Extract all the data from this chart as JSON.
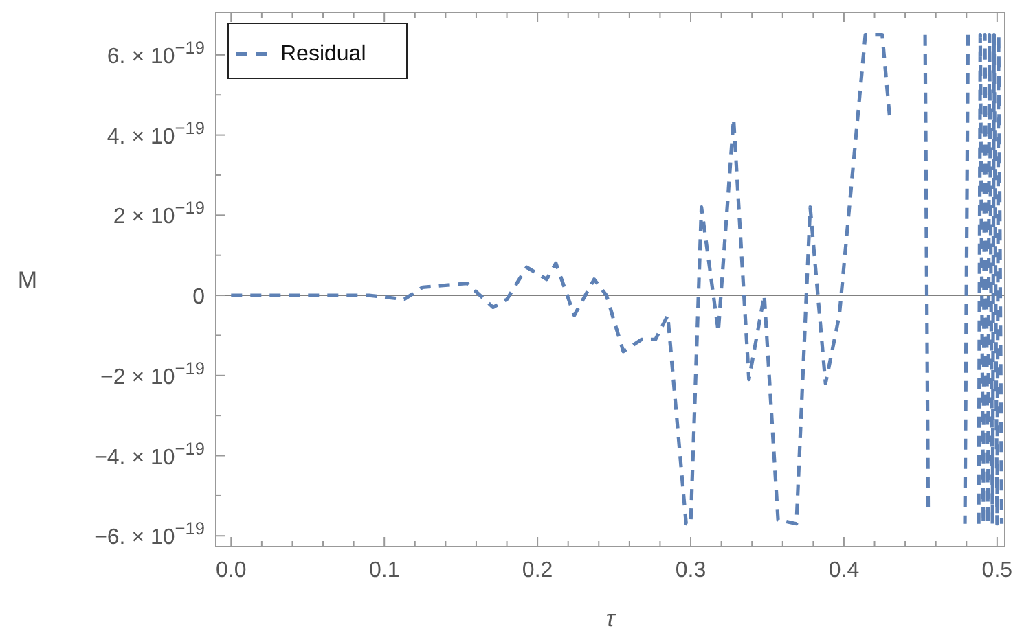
{
  "chart_data": {
    "type": "line",
    "xlabel": "τ",
    "ylabel": "M",
    "legend": "top left",
    "line_style": "dashed",
    "grid": false,
    "xlim": [
      -0.01,
      0.505
    ],
    "ylim": [
      -6.27e-19,
      7.06e-19
    ],
    "xticks": [
      {
        "value": 0,
        "label": "0.0"
      },
      {
        "value": 0.02,
        "label": null
      },
      {
        "value": 0.04,
        "label": null
      },
      {
        "value": 0.06,
        "label": null
      },
      {
        "value": 0.08,
        "label": null
      },
      {
        "value": 0.1,
        "label": "0.1"
      },
      {
        "value": 0.12,
        "label": null
      },
      {
        "value": 0.14,
        "label": null
      },
      {
        "value": 0.16,
        "label": null
      },
      {
        "value": 0.18,
        "label": null
      },
      {
        "value": 0.2,
        "label": "0.2"
      },
      {
        "value": 0.22,
        "label": null
      },
      {
        "value": 0.24,
        "label": null
      },
      {
        "value": 0.26,
        "label": null
      },
      {
        "value": 0.28,
        "label": null
      },
      {
        "value": 0.3,
        "label": "0.3"
      },
      {
        "value": 0.32,
        "label": null
      },
      {
        "value": 0.34,
        "label": null
      },
      {
        "value": 0.36,
        "label": null
      },
      {
        "value": 0.38,
        "label": null
      },
      {
        "value": 0.4,
        "label": "0.4"
      },
      {
        "value": 0.42,
        "label": null
      },
      {
        "value": 0.44,
        "label": null
      },
      {
        "value": 0.46,
        "label": null
      },
      {
        "value": 0.48,
        "label": null
      },
      {
        "value": 0.5,
        "label": "0.5"
      }
    ],
    "yticks": [
      {
        "value": -6e-19,
        "label": "−6. × 10$^{−19}$"
      },
      {
        "value": -5e-19,
        "label": null
      },
      {
        "value": -4e-19,
        "label": "−4. × 10$^{−19}$"
      },
      {
        "value": -3e-19,
        "label": null
      },
      {
        "value": -2e-19,
        "label": "−2 × 10$^{−19}$"
      },
      {
        "value": -1e-19,
        "label": null
      },
      {
        "value": 0,
        "label": "0"
      },
      {
        "value": 1e-19,
        "label": null
      },
      {
        "value": 2e-19,
        "label": "2 × 10$^{−19}$"
      },
      {
        "value": 3e-19,
        "label": null
      },
      {
        "value": 4e-19,
        "label": "4. × 10$^{−19}$"
      },
      {
        "value": 5e-19,
        "label": null
      },
      {
        "value": 6e-19,
        "label": "6. × 10$^{−19}$"
      }
    ],
    "ref_lines": [
      {
        "axis": "y",
        "value": 0,
        "color": "#808080"
      }
    ],
    "series": [
      {
        "name": "Residual",
        "color": "#5e81b5",
        "x": [
          0,
          0.05,
          0.09,
          0.113,
          0.125,
          0.154,
          0.171,
          0.18,
          0.193,
          0.206,
          0.212,
          0.224,
          0.237,
          0.245,
          0.256,
          0.268,
          0.277,
          0.285,
          0.297,
          0.3,
          0.307,
          0.318,
          0.328,
          0.338,
          0.348,
          0.357,
          0.369,
          0.378,
          0.388,
          0.397,
          0.414,
          0.425,
          0.43,
          0.44,
          0.453,
          0.455,
          0.47,
          0.481,
          0.479,
          0.485,
          0.488,
          0.489,
          0.491,
          0.492,
          0.494,
          0.495,
          0.497,
          0.498,
          0.5,
          0.501,
          0.503
        ],
        "values": [
          0,
          0,
          0,
          -1e-20,
          2e-20,
          3e-20,
          -3e-20,
          -1e-20,
          7e-20,
          4e-20,
          8e-20,
          -5e-20,
          4e-20,
          0,
          -1.4e-19,
          -1.1e-19,
          -1.1e-19,
          -5e-20,
          -5.7e-19,
          -5.7e-19,
          2.2e-19,
          -9e-20,
          4.4e-19,
          -2.1e-19,
          0,
          -5.6e-19,
          -5.7e-19,
          2.2e-19,
          -2.2e-19,
          -5e-20,
          6.5e-19,
          6.5e-19,
          4.4e-19,
          null,
          6.5e-19,
          -5.3e-19,
          null,
          6.5e-19,
          -5.7e-19,
          null,
          -5.7e-19,
          6.5e-19,
          -5.7e-19,
          6.5e-19,
          -5.7e-19,
          6.5e-19,
          -5.7e-19,
          6.5e-19,
          -5.7e-19,
          6.5e-19,
          -5.7e-19
        ]
      }
    ]
  }
}
